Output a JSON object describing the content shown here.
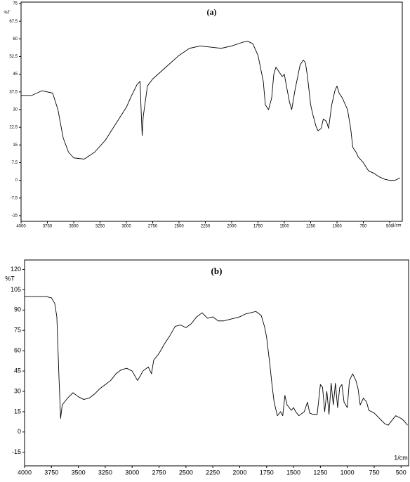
{
  "chart_data": [
    {
      "type": "line",
      "title": "(a)",
      "x_label": "1/cm",
      "y_label": "%T",
      "x": [
        4000,
        3900,
        3800,
        3700,
        3650,
        3600,
        3550,
        3500,
        3400,
        3300,
        3200,
        3100,
        3000,
        2950,
        2900,
        2870,
        2860,
        2850,
        2840,
        2800,
        2750,
        2600,
        2500,
        2400,
        2300,
        2200,
        2100,
        2000,
        1900,
        1850,
        1800,
        1750,
        1700,
        1680,
        1650,
        1620,
        1600,
        1580,
        1550,
        1520,
        1500,
        1480,
        1450,
        1430,
        1400,
        1350,
        1320,
        1300,
        1280,
        1250,
        1230,
        1200,
        1180,
        1150,
        1130,
        1100,
        1080,
        1050,
        1020,
        1000,
        980,
        950,
        900,
        870,
        850,
        820,
        800,
        750,
        700,
        650,
        600,
        550,
        500,
        450,
        400
      ],
      "series": [
        {
          "name": "(a)",
          "color": "#000000",
          "values": [
            36,
            36,
            38,
            37,
            30,
            18,
            12,
            9.5,
            9,
            12,
            17,
            24,
            31,
            36,
            40.5,
            42,
            30,
            19,
            27,
            40,
            43,
            49,
            53,
            56,
            57,
            56.5,
            56,
            57,
            58.5,
            59,
            58,
            53,
            42,
            32,
            30,
            35,
            45,
            48,
            46,
            44,
            45,
            40,
            33,
            30,
            38,
            49,
            51,
            50,
            44,
            32,
            28,
            23,
            21,
            22,
            26,
            25,
            22,
            32,
            38,
            40,
            37,
            35,
            30,
            22,
            14,
            12,
            10,
            7.5,
            4,
            3,
            1.5,
            0.5,
            0,
            0,
            1
          ]
        }
      ],
      "xlim": [
        4000,
        380
      ],
      "ylim": [
        -17.4,
        75.6
      ],
      "xticks": [
        4000,
        3750,
        3500,
        3250,
        3000,
        2750,
        2500,
        2250,
        2000,
        1750,
        1500,
        1250,
        1000,
        750,
        500
      ],
      "yticks": [
        75,
        67.5,
        60,
        52.5,
        45,
        37.5,
        30,
        22.5,
        15,
        7.5,
        0,
        -7.5,
        -15
      ]
    },
    {
      "type": "line",
      "title": "(b)",
      "x_label": "1/cm",
      "y_label": "%T",
      "x": [
        4000,
        3900,
        3800,
        3750,
        3720,
        3700,
        3680,
        3665,
        3650,
        3600,
        3550,
        3500,
        3450,
        3400,
        3350,
        3300,
        3250,
        3200,
        3150,
        3100,
        3050,
        3000,
        2950,
        2920,
        2900,
        2850,
        2820,
        2800,
        2750,
        2700,
        2650,
        2600,
        2550,
        2500,
        2450,
        2400,
        2350,
        2300,
        2250,
        2200,
        2150,
        2100,
        2050,
        2000,
        1950,
        1900,
        1850,
        1800,
        1770,
        1750,
        1720,
        1700,
        1680,
        1650,
        1620,
        1600,
        1580,
        1560,
        1520,
        1500,
        1480,
        1450,
        1400,
        1370,
        1350,
        1320,
        1280,
        1250,
        1230,
        1210,
        1190,
        1170,
        1150,
        1130,
        1110,
        1090,
        1070,
        1050,
        1030,
        1000,
        980,
        950,
        920,
        900,
        880,
        850,
        820,
        800,
        750,
        700,
        650,
        620,
        600,
        550,
        500,
        470,
        440
      ],
      "series": [
        {
          "name": "(b)",
          "color": "#000000",
          "values": [
            100,
            100,
            100,
            99,
            95,
            85,
            40,
            10,
            20,
            25,
            29,
            26,
            24,
            25,
            28,
            32,
            35,
            38,
            43,
            46,
            47,
            45,
            38,
            42,
            45,
            48,
            43,
            53,
            58,
            65,
            71,
            78,
            79,
            77,
            80,
            85,
            88,
            84,
            85,
            82,
            82,
            83,
            84,
            85,
            87,
            88,
            89,
            86,
            78,
            70,
            50,
            35,
            22,
            12,
            15,
            12,
            27,
            20,
            16,
            18,
            15,
            12,
            15,
            22,
            14,
            13,
            13,
            35,
            33,
            15,
            30,
            13,
            36,
            20,
            36,
            18,
            33,
            35,
            22,
            18,
            38,
            43,
            38,
            32,
            20,
            25,
            22,
            16,
            14,
            10,
            6,
            5,
            7,
            12,
            10,
            8,
            5
          ]
        }
      ],
      "xlim": [
        4000,
        430
      ],
      "ylim": [
        -25,
        127
      ],
      "xticks": [
        4000,
        3750,
        3500,
        3250,
        3000,
        2750,
        2500,
        2250,
        2000,
        1750,
        1500,
        1250,
        1000,
        750,
        500
      ],
      "yticks": [
        120,
        105,
        90,
        75,
        60,
        45,
        30,
        15,
        0,
        -15
      ]
    }
  ]
}
